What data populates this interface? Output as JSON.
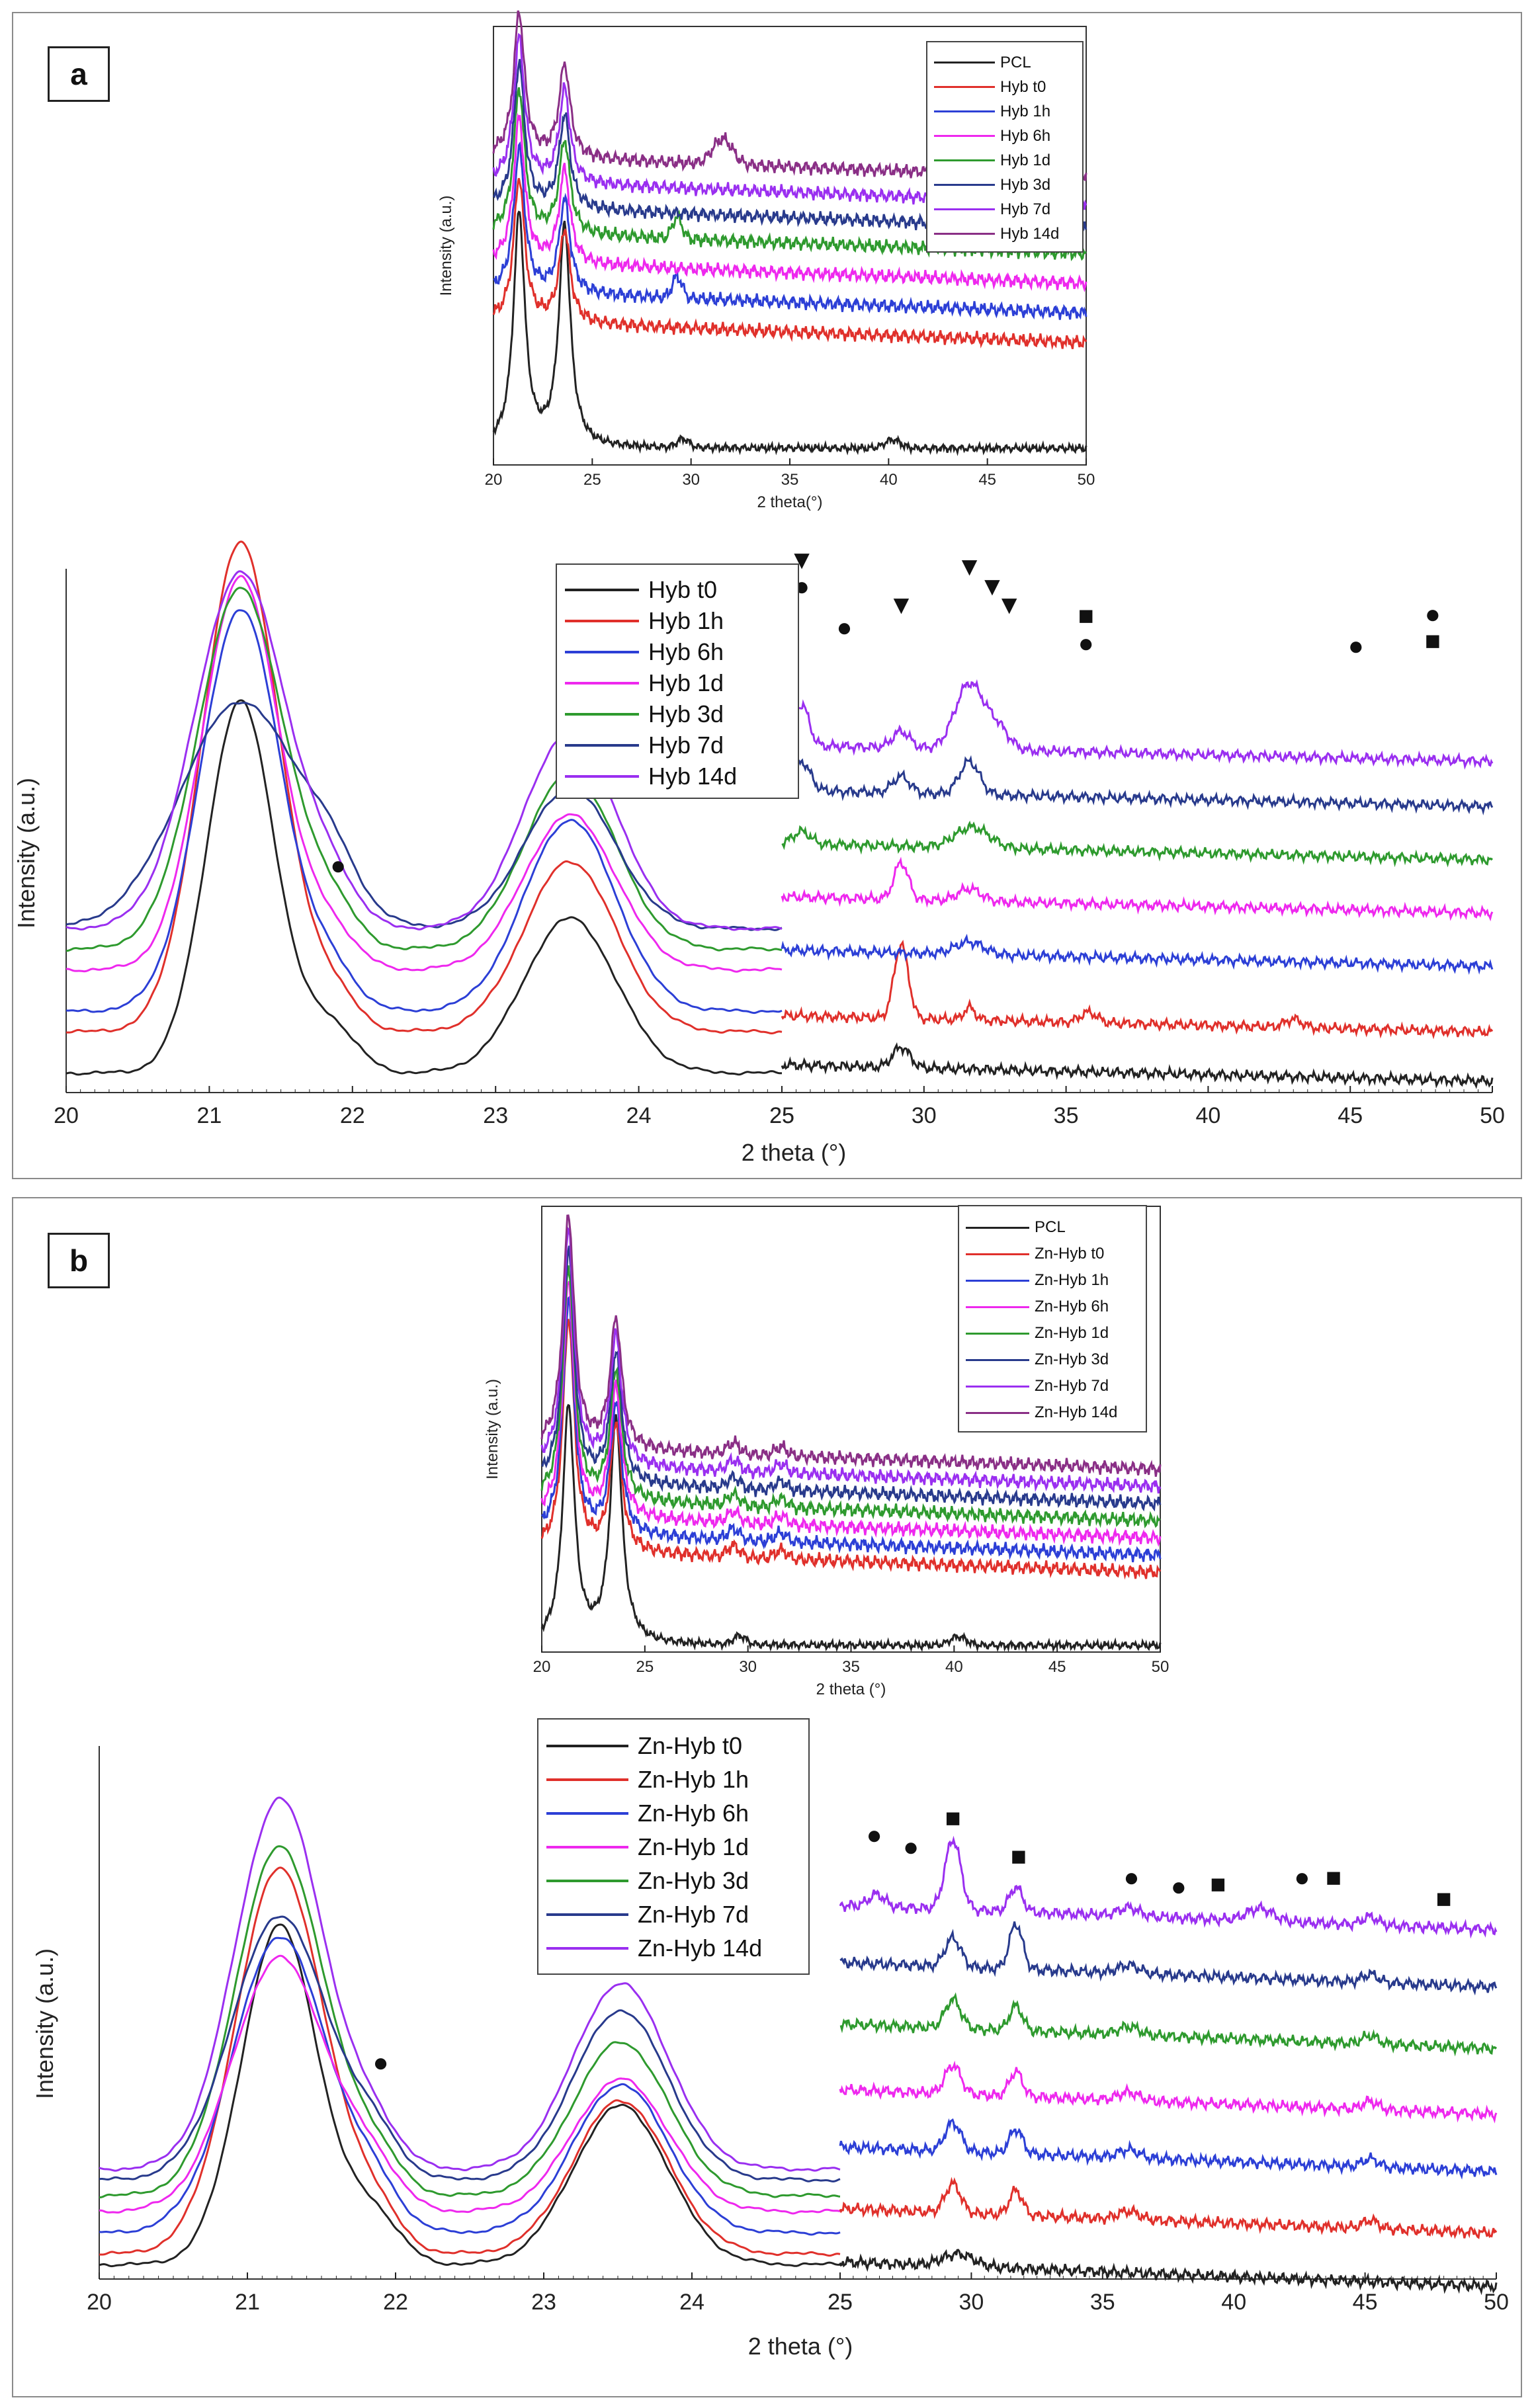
{
  "panels": {
    "a": {
      "label": "a"
    },
    "b": {
      "label": "b"
    }
  },
  "chart_data": [
    {
      "id": "a_inset",
      "type": "line",
      "title": "",
      "xlabel": "2 theta(°)",
      "ylabel": "Intensity (a.u.)",
      "xlim": [
        20,
        50
      ],
      "xticks": [
        20,
        25,
        30,
        35,
        40,
        45,
        50
      ],
      "series": [
        {
          "name": "PCL",
          "color": "#222222",
          "offset": 0.0
        },
        {
          "name": "Hyb t0",
          "color": "#e0302b",
          "offset": 0.3
        },
        {
          "name": "Hyb 1h",
          "color": "#2c3fd6",
          "offset": 0.37
        },
        {
          "name": "Hyb 6h",
          "color": "#ee28ee",
          "offset": 0.44
        },
        {
          "name": "Hyb 1d",
          "color": "#2e9a2e",
          "offset": 0.51
        },
        {
          "name": "Hyb 3d",
          "color": "#283a8c",
          "offset": 0.57
        },
        {
          "name": "Hyb 7d",
          "color": "#9a2ff0",
          "offset": 0.63
        },
        {
          "name": "Hyb 14d",
          "color": "#8a2f86",
          "offset": 0.69
        }
      ]
    },
    {
      "id": "a_left",
      "type": "line",
      "title": "",
      "xlabel": "2 theta (°)",
      "ylabel": "Intensity (a.u.)",
      "xlim": [
        20,
        25
      ],
      "xticks": [
        20,
        21,
        22,
        23,
        24,
        25
      ],
      "annotations": [
        {
          "symbol": "●",
          "x": 21.9
        }
      ],
      "series": [
        {
          "name": "Hyb t0",
          "color": "#222222",
          "base": 0.02,
          "p1": 0.72,
          "p2": 0.3,
          "w1": 0.24
        },
        {
          "name": "Hyb 1h",
          "color": "#e0302b",
          "base": 0.1,
          "p1": 0.95,
          "p2": 0.33,
          "w1": 0.27
        },
        {
          "name": "Hyb 6h",
          "color": "#2c3fd6",
          "base": 0.14,
          "p1": 0.78,
          "p2": 0.37,
          "w1": 0.28
        },
        {
          "name": "Hyb 1d",
          "color": "#ee28ee",
          "base": 0.22,
          "p1": 0.76,
          "p2": 0.3,
          "w1": 0.27
        },
        {
          "name": "Hyb 3d",
          "color": "#2e9a2e",
          "base": 0.26,
          "p1": 0.7,
          "p2": 0.34,
          "w1": 0.3
        },
        {
          "name": "Hyb 7d",
          "color": "#283a8c",
          "base": 0.3,
          "p1": 0.44,
          "p2": 0.27,
          "w1": 0.42
        },
        {
          "name": "Hyb 14d",
          "color": "#9a2ff0",
          "base": 0.3,
          "p1": 0.69,
          "p2": 0.38,
          "w1": 0.32
        }
      ]
    },
    {
      "id": "a_right",
      "type": "line",
      "title": "",
      "xlabel": "",
      "ylabel": "",
      "xlim": [
        25,
        50
      ],
      "xticks": [
        25,
        30,
        35,
        40,
        45,
        50
      ],
      "annotations": [
        {
          "symbol": "▼",
          "x": 25.7
        },
        {
          "symbol": "●",
          "x": 25.7
        },
        {
          "symbol": "●",
          "x": 27.2
        },
        {
          "symbol": "▼",
          "x": 29.2
        },
        {
          "symbol": "▼",
          "x": 31.6
        },
        {
          "symbol": "▼",
          "x": 32.4
        },
        {
          "symbol": "▼",
          "x": 33.0
        },
        {
          "symbol": "■",
          "x": 35.7
        },
        {
          "symbol": "●",
          "x": 35.7
        },
        {
          "symbol": "●",
          "x": 45.2
        },
        {
          "symbol": "●",
          "x": 47.9
        },
        {
          "symbol": "■",
          "x": 47.9
        }
      ],
      "series": [
        {
          "name": "Hyb t0",
          "color": "#222222",
          "offset": 0.0
        },
        {
          "name": "Hyb 1h",
          "color": "#e0302b",
          "offset": 0.12
        },
        {
          "name": "Hyb 6h",
          "color": "#2c3fd6",
          "offset": 0.28
        },
        {
          "name": "Hyb 1d",
          "color": "#ee28ee",
          "offset": 0.41
        },
        {
          "name": "Hyb 3d",
          "color": "#2e9a2e",
          "offset": 0.54
        },
        {
          "name": "Hyb 7d",
          "color": "#283a8c",
          "offset": 0.67
        },
        {
          "name": "Hyb 14d",
          "color": "#9a2ff0",
          "offset": 0.78
        }
      ]
    },
    {
      "id": "b_inset",
      "type": "line",
      "title": "",
      "xlabel": "2 theta (°)",
      "ylabel": "Intensity (a.u.)",
      "xlim": [
        20,
        50
      ],
      "xticks": [
        20,
        25,
        30,
        35,
        40,
        45,
        50
      ],
      "series": [
        {
          "name": "PCL",
          "color": "#222222",
          "offset": 0.0
        },
        {
          "name": "Zn-Hyb t0",
          "color": "#e0302b",
          "offset": 0.22
        },
        {
          "name": "Zn-Hyb 1h",
          "color": "#2c3fd6",
          "offset": 0.26
        },
        {
          "name": "Zn-Hyb 6h",
          "color": "#ee28ee",
          "offset": 0.3
        },
        {
          "name": "Zn-Hyb 1d",
          "color": "#2e9a2e",
          "offset": 0.34
        },
        {
          "name": "Zn-Hyb 3d",
          "color": "#283a8c",
          "offset": 0.38
        },
        {
          "name": "Zn-Hyb 7d",
          "color": "#9a2ff0",
          "offset": 0.42
        },
        {
          "name": "Zn-Hyb 14d",
          "color": "#8a2f86",
          "offset": 0.46
        }
      ]
    },
    {
      "id": "b_left",
      "type": "line",
      "title": "",
      "xlabel": "2 theta (°)",
      "ylabel": "Intensity (a.u.)",
      "xlim": [
        20,
        25
      ],
      "xticks": [
        20,
        21,
        22,
        23,
        24,
        25
      ],
      "annotations": [
        {
          "symbol": "●",
          "x": 21.9
        }
      ],
      "series": [
        {
          "name": "Zn-Hyb t0",
          "color": "#222222",
          "base": 0.02,
          "p1": 0.64,
          "p2": 0.3,
          "w1": 0.26
        },
        {
          "name": "Zn-Hyb 1h",
          "color": "#e0302b",
          "base": 0.04,
          "p1": 0.73,
          "p2": 0.29,
          "w1": 0.3
        },
        {
          "name": "Zn-Hyb 6h",
          "color": "#2c3fd6",
          "base": 0.08,
          "p1": 0.56,
          "p2": 0.28,
          "w1": 0.32
        },
        {
          "name": "Zn-Hyb 1d",
          "color": "#ee28ee",
          "base": 0.12,
          "p1": 0.48,
          "p2": 0.25,
          "w1": 0.32
        },
        {
          "name": "Zn-Hyb 3d",
          "color": "#2e9a2e",
          "base": 0.15,
          "p1": 0.66,
          "p2": 0.29,
          "w1": 0.3
        },
        {
          "name": "Zn-Hyb 7d",
          "color": "#283a8c",
          "base": 0.18,
          "p1": 0.5,
          "p2": 0.32,
          "w1": 0.32
        },
        {
          "name": "Zn-Hyb 14d",
          "color": "#9a2ff0",
          "base": 0.2,
          "p1": 0.7,
          "p2": 0.35,
          "w1": 0.3
        }
      ]
    },
    {
      "id": "b_right",
      "type": "line",
      "title": "",
      "xlabel": "",
      "ylabel": "",
      "xlim": [
        25,
        50
      ],
      "xticks": [
        25,
        30,
        35,
        40,
        45,
        50
      ],
      "annotations": [
        {
          "symbol": "●",
          "x": 26.3
        },
        {
          "symbol": "●",
          "x": 27.7
        },
        {
          "symbol": "■",
          "x": 29.3
        },
        {
          "symbol": "■",
          "x": 31.8
        },
        {
          "symbol": "●",
          "x": 36.1
        },
        {
          "symbol": "●",
          "x": 37.9
        },
        {
          "symbol": "■",
          "x": 39.4
        },
        {
          "symbol": "●",
          "x": 42.6
        },
        {
          "symbol": "■",
          "x": 43.8
        },
        {
          "symbol": "■",
          "x": 48.0
        }
      ],
      "series": [
        {
          "name": "Zn-Hyb t0",
          "color": "#222222",
          "offset": 0.0
        },
        {
          "name": "Zn-Hyb 1h",
          "color": "#e0302b",
          "offset": 0.13
        },
        {
          "name": "Zn-Hyb 6h",
          "color": "#2c3fd6",
          "offset": 0.28
        },
        {
          "name": "Zn-Hyb 1d",
          "color": "#ee28ee",
          "offset": 0.42
        },
        {
          "name": "Zn-Hyb 3d",
          "color": "#2e9a2e",
          "offset": 0.58
        },
        {
          "name": "Zn-Hyb 7d",
          "color": "#283a8c",
          "offset": 0.73
        },
        {
          "name": "Zn-Hyb 14d",
          "color": "#9a2ff0",
          "offset": 0.87
        }
      ]
    }
  ]
}
